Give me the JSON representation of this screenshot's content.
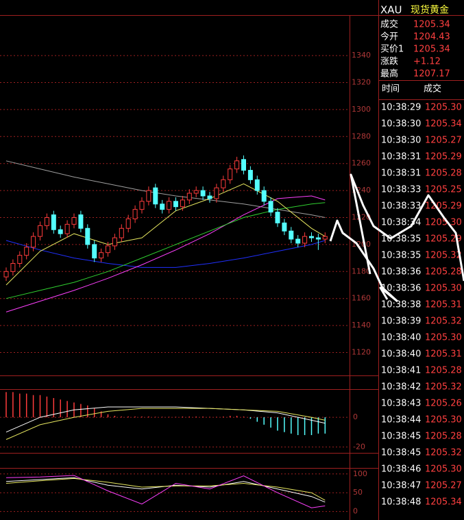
{
  "header": {
    "symbol": "XAU",
    "name": "现货黄金"
  },
  "quote": {
    "rows": [
      [
        "成交",
        "1205.34"
      ],
      [
        "今开",
        "1204.43"
      ],
      [
        "买价1",
        "1205.34"
      ],
      [
        "涨跌",
        "+1.12"
      ],
      [
        "最高",
        "1207.17"
      ]
    ]
  },
  "trades": {
    "columns": [
      "时间",
      "成交"
    ],
    "rows": [
      [
        "10:38:29",
        "1205.30"
      ],
      [
        "10:38:30",
        "1205.34"
      ],
      [
        "10:38:30",
        "1205.27"
      ],
      [
        "10:38:31",
        "1205.29"
      ],
      [
        "10:38:31",
        "1205.28"
      ],
      [
        "10:38:33",
        "1205.25"
      ],
      [
        "10:38:33",
        "1205.29"
      ],
      [
        "10:38:34",
        "1205.30"
      ],
      [
        "10:38:35",
        "1205.29"
      ],
      [
        "10:38:35",
        "1205.32"
      ],
      [
        "10:38:36",
        "1205.28"
      ],
      [
        "10:38:36",
        "1205.30"
      ],
      [
        "10:38:38",
        "1205.31"
      ],
      [
        "10:38:39",
        "1205.32"
      ],
      [
        "10:38:40",
        "1205.30"
      ],
      [
        "10:38:40",
        "1205.31"
      ],
      [
        "10:38:41",
        "1205.28"
      ],
      [
        "10:38:42",
        "1205.32"
      ],
      [
        "10:38:43",
        "1205.26"
      ],
      [
        "10:38:44",
        "1205.30"
      ],
      [
        "10:38:45",
        "1205.28"
      ],
      [
        "10:38:45",
        "1205.32"
      ],
      [
        "10:38:46",
        "1205.30"
      ],
      [
        "10:38:47",
        "1205.27"
      ],
      [
        "10:38:48",
        "1205.34"
      ]
    ]
  },
  "chart_data": [
    {
      "type": "candlestick",
      "ylim": [
        1103,
        1370
      ],
      "yticks": [
        1120,
        1140,
        1160,
        1180,
        1200,
        1220,
        1240,
        1260,
        1280,
        1300,
        1320,
        1340
      ],
      "grid": true,
      "up_color": "#ff3c3c",
      "down_color": "#54ffff",
      "open": [
        1176,
        1180,
        1186,
        1192,
        1198,
        1206,
        1214,
        1222,
        1211,
        1208,
        1215,
        1222,
        1212,
        1200,
        1190,
        1194,
        1199,
        1205,
        1212,
        1219,
        1226,
        1232,
        1242,
        1230,
        1226,
        1232,
        1228,
        1233,
        1238,
        1240,
        1236,
        1234,
        1242,
        1248,
        1256,
        1263,
        1255,
        1248,
        1240,
        1232,
        1224,
        1216,
        1210,
        1204,
        1201,
        1206,
        1205,
        1204
      ],
      "high": [
        1183,
        1189,
        1195,
        1201,
        1209,
        1217,
        1223,
        1225,
        1214,
        1218,
        1223,
        1225,
        1215,
        1203,
        1197,
        1202,
        1208,
        1215,
        1222,
        1229,
        1235,
        1243,
        1245,
        1233,
        1235,
        1235,
        1236,
        1241,
        1243,
        1243,
        1239,
        1245,
        1251,
        1259,
        1265,
        1266,
        1258,
        1251,
        1243,
        1235,
        1227,
        1219,
        1213,
        1207,
        1209,
        1209,
        1208,
        1209
      ],
      "low": [
        1173,
        1177,
        1183,
        1189,
        1195,
        1203,
        1211,
        1208,
        1205,
        1205,
        1212,
        1209,
        1197,
        1187,
        1187,
        1191,
        1196,
        1202,
        1209,
        1216,
        1223,
        1229,
        1227,
        1223,
        1223,
        1225,
        1225,
        1230,
        1235,
        1233,
        1231,
        1231,
        1239,
        1245,
        1253,
        1252,
        1245,
        1237,
        1229,
        1221,
        1213,
        1207,
        1201,
        1198,
        1198,
        1202,
        1196,
        1201
      ],
      "close": [
        1180,
        1186,
        1192,
        1198,
        1206,
        1214,
        1220,
        1211,
        1208,
        1215,
        1220,
        1212,
        1200,
        1190,
        1194,
        1199,
        1205,
        1212,
        1219,
        1226,
        1232,
        1240,
        1230,
        1226,
        1232,
        1228,
        1233,
        1238,
        1240,
        1236,
        1234,
        1242,
        1248,
        1256,
        1262,
        1255,
        1248,
        1240,
        1232,
        1224,
        1216,
        1210,
        1204,
        1201,
        1206,
        1205,
        1204,
        1206
      ],
      "lines": [
        {
          "color": "#a0a0a0",
          "x": [
            0,
            5,
            10,
            15,
            20,
            25,
            30,
            35,
            40,
            45,
            47
          ],
          "values": [
            1262,
            1256,
            1250,
            1245,
            1240,
            1236,
            1233,
            1230,
            1226,
            1222,
            1220
          ]
        },
        {
          "color": "#2030ff",
          "x": [
            0,
            5,
            10,
            15,
            20,
            25,
            30,
            35,
            40,
            45,
            47
          ],
          "values": [
            1203,
            1196,
            1190,
            1186,
            1183,
            1183,
            1186,
            1190,
            1195,
            1200,
            1203
          ]
        },
        {
          "color": "#ff40ff",
          "x": [
            0,
            5,
            10,
            15,
            20,
            25,
            30,
            35,
            40,
            45,
            47
          ],
          "values": [
            1150,
            1158,
            1166,
            1175,
            1185,
            1196,
            1208,
            1222,
            1234,
            1236,
            1233
          ]
        },
        {
          "color": "#30d030",
          "x": [
            0,
            5,
            10,
            15,
            20,
            25,
            30,
            35,
            40,
            45,
            47
          ],
          "values": [
            1160,
            1166,
            1172,
            1180,
            1190,
            1200,
            1210,
            1220,
            1226,
            1230,
            1231
          ]
        },
        {
          "color": "#e8e860",
          "x": [
            0,
            5,
            10,
            15,
            20,
            25,
            30,
            35,
            40,
            45,
            47
          ],
          "values": [
            1170,
            1195,
            1208,
            1200,
            1205,
            1225,
            1234,
            1245,
            1232,
            1212,
            1206
          ]
        }
      ]
    },
    {
      "type": "macd",
      "ylim": [
        -24,
        19
      ],
      "yticks": [
        -20,
        0
      ],
      "up_color": "#ff3c3c",
      "down_color": "#54ffff",
      "values": [
        17,
        17,
        16,
        16,
        15,
        15,
        14,
        13,
        12,
        11,
        10,
        9,
        8,
        6,
        4,
        2,
        1,
        0.5,
        0.5,
        0.5,
        0.5,
        0.5,
        0.3,
        0.3,
        0.3,
        0.3,
        0.5,
        0.5,
        0.5,
        0.5,
        0.3,
        0.3,
        0.5,
        1,
        1,
        0.5,
        -1,
        -3,
        -5,
        -7,
        -9,
        -10,
        -11,
        -12,
        -12,
        -12,
        -11,
        -11
      ],
      "lines": [
        {
          "color": "#ffffff",
          "x": [
            0,
            5,
            10,
            15,
            20,
            25,
            30,
            35,
            40,
            45,
            47
          ],
          "values": [
            -10,
            0,
            5,
            7,
            7,
            7,
            6,
            5,
            3,
            -2,
            -4
          ]
        },
        {
          "color": "#e8e860",
          "x": [
            0,
            5,
            10,
            15,
            20,
            25,
            30,
            35,
            40,
            45,
            47
          ],
          "values": [
            -15,
            -5,
            0,
            4,
            6,
            6,
            6,
            5,
            4,
            0,
            -2
          ]
        }
      ]
    },
    {
      "type": "line",
      "ylim": [
        -17,
        116
      ],
      "yticks": [
        0,
        50,
        100
      ],
      "lines": [
        {
          "color": "#ffffff",
          "x": [
            0,
            5,
            10,
            15,
            20,
            25,
            30,
            35,
            40,
            45,
            47
          ],
          "values": [
            80,
            85,
            90,
            70,
            60,
            70,
            65,
            80,
            60,
            40,
            25
          ]
        },
        {
          "color": "#e8e860",
          "x": [
            0,
            5,
            10,
            15,
            20,
            25,
            30,
            35,
            40,
            45,
            47
          ],
          "values": [
            75,
            82,
            88,
            78,
            65,
            68,
            68,
            75,
            65,
            50,
            30
          ]
        },
        {
          "color": "#ff40ff",
          "x": [
            0,
            5,
            10,
            15,
            20,
            25,
            30,
            35,
            40,
            45,
            47
          ],
          "values": [
            90,
            92,
            96,
            55,
            20,
            75,
            60,
            95,
            50,
            10,
            15
          ]
        }
      ]
    }
  ]
}
